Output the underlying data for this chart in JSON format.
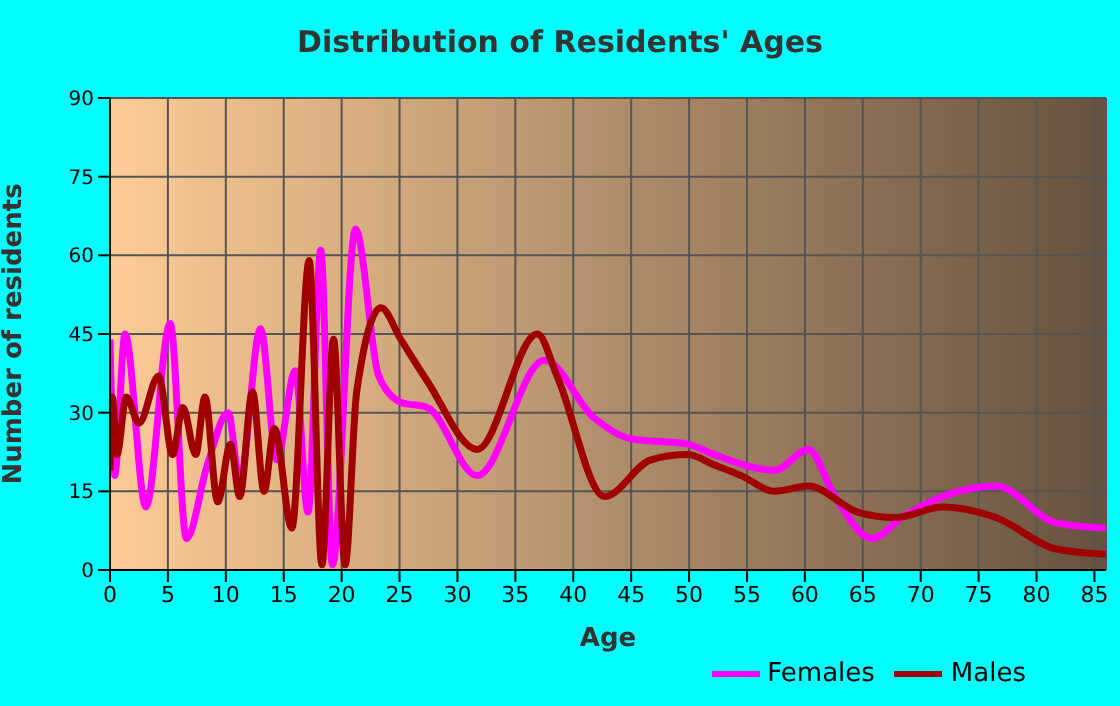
{
  "chart_data": {
    "type": "line",
    "title": "Distribution of Residents' Ages",
    "xlabel": "Age",
    "ylabel": "Number of residents",
    "xlim": [
      0,
      86
    ],
    "xticks": [
      0,
      5,
      10,
      15,
      20,
      25,
      30,
      35,
      40,
      45,
      50,
      55,
      60,
      65,
      70,
      75,
      80,
      85
    ],
    "ylim": [
      0,
      90
    ],
    "yticks": [
      0,
      15,
      30,
      45,
      60,
      75,
      90
    ],
    "grid": true,
    "legend": "bottom right",
    "marker": "none",
    "line_style": "solid",
    "series": [
      {
        "name": "Males",
        "color": "#a00000",
        "x": [
          0,
          0.2,
          0.6,
          1.4,
          2.5,
          4.2,
          5.4,
          6.3,
          7.4,
          8.2,
          9.3,
          10.4,
          11.2,
          12.3,
          13.3,
          14.2,
          15.7,
          17.2,
          18.3,
          19.3,
          20.3,
          21.3,
          23.4,
          25.1,
          27.4,
          31.7,
          36.9,
          38.6,
          42.7,
          46.7,
          49.9,
          52.2,
          54.5,
          57.4,
          60.3,
          64.6,
          67.8,
          71.9,
          76.5,
          81.7,
          86
        ],
        "values": [
          19,
          33,
          22,
          33,
          28,
          37,
          22,
          31,
          22,
          33,
          13,
          24,
          14,
          34,
          15,
          27,
          8,
          59,
          1,
          44,
          1,
          34,
          50,
          44,
          36,
          23,
          45,
          37,
          14,
          21,
          22,
          20,
          18,
          15,
          16,
          11,
          10,
          12,
          10,
          4,
          3
        ]
      },
      {
        "name": "Females",
        "color": "#ff00ff",
        "x": [
          0,
          0.4,
          1.3,
          3.1,
          5.2,
          6.6,
          8.4,
          10.2,
          11.2,
          13,
          14.4,
          16,
          17.1,
          18.2,
          19.2,
          21.2,
          23.2,
          25.1,
          27.4,
          31.7,
          37.5,
          41.8,
          45,
          49.9,
          52.2,
          57.4,
          60.3,
          62.6,
          65.8,
          68.4,
          71.9,
          76.5,
          81.7,
          86
        ],
        "values": [
          44,
          18,
          45,
          12,
          47,
          6,
          20,
          30,
          17,
          46,
          21,
          38,
          11,
          61,
          1,
          65,
          37,
          32,
          31,
          18,
          40,
          29,
          25,
          24,
          22,
          19,
          23,
          14,
          6,
          10,
          14,
          16,
          9,
          8
        ]
      }
    ]
  }
}
